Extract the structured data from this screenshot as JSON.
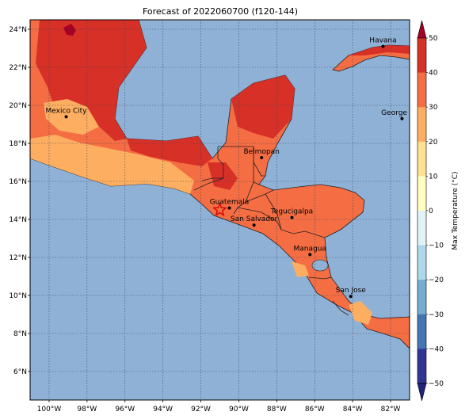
{
  "title": "Forecast of 2022060700 (f120-144)",
  "map": {
    "lon_min": -101,
    "lon_max": -81,
    "lat_min": 4.5,
    "lat_max": 24.5,
    "ocean_color": "#8fb1d6",
    "x_ticks": [
      {
        "lon": -100,
        "label": "100°W"
      },
      {
        "lon": -98,
        "label": "98°W"
      },
      {
        "lon": -96,
        "label": "96°W"
      },
      {
        "lon": -94,
        "label": "94°W"
      },
      {
        "lon": -92,
        "label": "92°W"
      },
      {
        "lon": -90,
        "label": "90°W"
      },
      {
        "lon": -88,
        "label": "88°W"
      },
      {
        "lon": -86,
        "label": "86°W"
      },
      {
        "lon": -84,
        "label": "84°W"
      },
      {
        "lon": -82,
        "label": "82°W"
      }
    ],
    "y_ticks": [
      {
        "lat": 24,
        "label": "24°N"
      },
      {
        "lat": 22,
        "label": "22°N"
      },
      {
        "lat": 20,
        "label": "20°N"
      },
      {
        "lat": 18,
        "label": "18°N"
      },
      {
        "lat": 16,
        "label": "16°N"
      },
      {
        "lat": 14,
        "label": "14°N"
      },
      {
        "lat": 12,
        "label": "12°N"
      },
      {
        "lat": 10,
        "label": "10°N"
      },
      {
        "lat": 8,
        "label": "8°N"
      },
      {
        "lat": 6,
        "label": "6°N"
      }
    ],
    "cities": [
      {
        "name": "Havana",
        "lon": -82.4,
        "lat": 23.1
      },
      {
        "name": "Mexico City",
        "lon": -99.1,
        "lat": 19.4
      },
      {
        "name": "George Tow",
        "lon": -81.4,
        "lat": 19.3
      },
      {
        "name": "Belmopan",
        "lon": -88.8,
        "lat": 17.25
      },
      {
        "name": "Guatemala",
        "lon": -90.5,
        "lat": 14.6
      },
      {
        "name": "Tegucigalpa",
        "lon": -87.2,
        "lat": 14.1
      },
      {
        "name": "San Salvador",
        "lon": -89.2,
        "lat": 13.7
      },
      {
        "name": "Managua",
        "lon": -86.25,
        "lat": 12.15
      },
      {
        "name": "San Jose",
        "lon": -84.1,
        "lat": 9.95
      }
    ],
    "marker": {
      "name": "star",
      "lon": -91.0,
      "lat": 14.5
    }
  },
  "colorbar": {
    "label": "Max Temperature (°C)",
    "ticks": [
      "50",
      "40",
      "30",
      "20",
      "10",
      "0",
      "−10",
      "−20",
      "−30",
      "−40",
      "−50"
    ],
    "colors_top_down": [
      "#a50026",
      "#d73027",
      "#f46d43",
      "#fdae61",
      "#fee090",
      "#ffffbf",
      "#e0f3f8",
      "#abd9e9",
      "#74add1",
      "#4575b4",
      "#313695"
    ],
    "over_color": "#a50026",
    "under_color": "#23237a"
  },
  "fill_colors": {
    "land_base": "#f46d43",
    "hot": "#d73027",
    "very_hot": "#a50026",
    "warm": "#fdae61"
  }
}
